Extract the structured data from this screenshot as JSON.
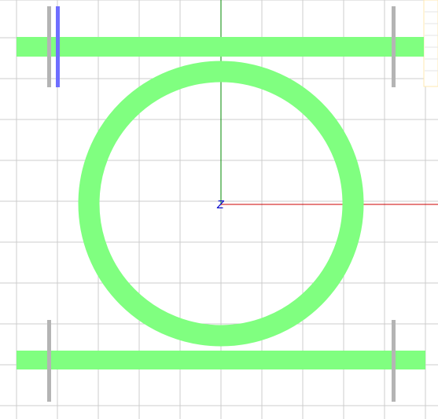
{
  "view": {
    "background": "#ffffff",
    "grid_color": "#cccccc",
    "grid_on": true,
    "shape_fill": "#80ff80",
    "marker_color": "#b4b4b4",
    "selected_marker_color": "#6e6eff",
    "x_axis_color": "#cc0000",
    "y_axis_color": "#008800",
    "origin_label": "Z",
    "origin_label_color": "#0000cc",
    "side_panel_color": "#ffe9b0"
  },
  "shapes": [
    {
      "name": "top-waveguide",
      "kind": "bar"
    },
    {
      "name": "bottom-waveguide",
      "kind": "bar"
    },
    {
      "name": "ring-resonator",
      "kind": "ring"
    }
  ],
  "markers": [
    {
      "name": "port-marker-top-left",
      "selected": false
    },
    {
      "name": "port-marker-top-left-selected",
      "selected": true
    },
    {
      "name": "port-marker-top-right",
      "selected": false
    },
    {
      "name": "port-marker-bottom-left",
      "selected": false
    },
    {
      "name": "port-marker-bottom-right",
      "selected": false
    }
  ]
}
